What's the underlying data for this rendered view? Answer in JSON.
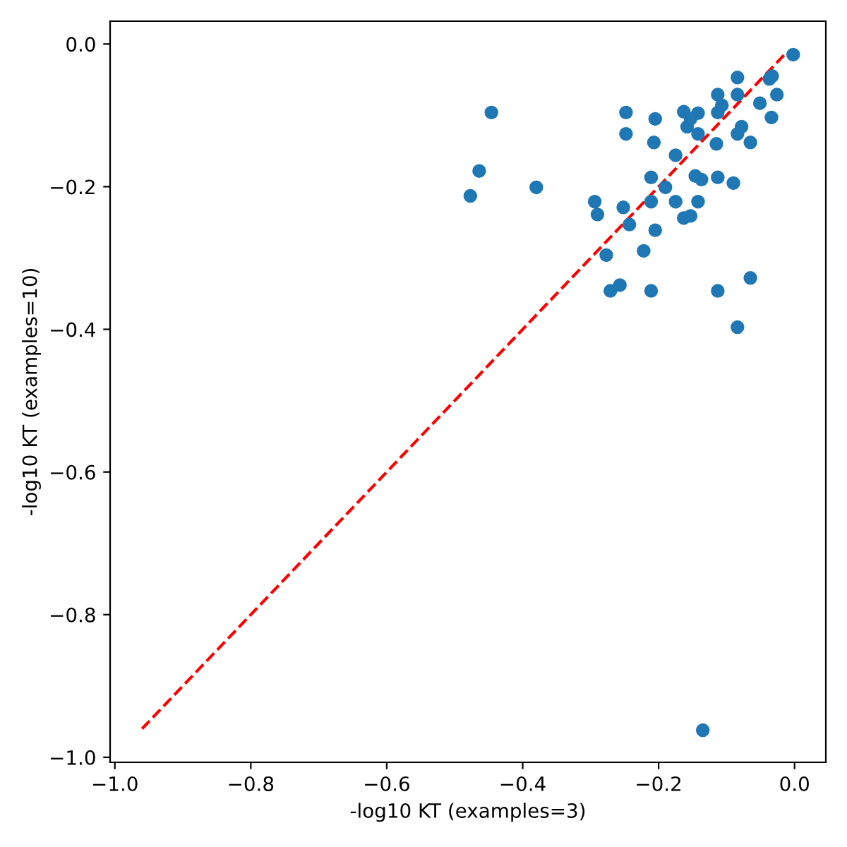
{
  "chart_data": {
    "type": "scatter",
    "xlabel": "-log10 KT (examples=3)",
    "ylabel": "-log10 KT (examples=10)",
    "xlim": [
      -1.007,
      0.046
    ],
    "ylim": [
      -1.007,
      0.032
    ],
    "xticks": [
      {
        "value": -1.0,
        "label": "−1.0"
      },
      {
        "value": -0.8,
        "label": "−0.8"
      },
      {
        "value": -0.6,
        "label": "−0.6"
      },
      {
        "value": -0.4,
        "label": "−0.4"
      },
      {
        "value": -0.2,
        "label": "−0.2"
      },
      {
        "value": 0.0,
        "label": "0.0"
      }
    ],
    "yticks": [
      {
        "value": -1.0,
        "label": "−1.0"
      },
      {
        "value": -0.8,
        "label": "−0.8"
      },
      {
        "value": -0.6,
        "label": "−0.6"
      },
      {
        "value": -0.4,
        "label": "−0.4"
      },
      {
        "value": -0.2,
        "label": "−0.2"
      },
      {
        "value": 0.0,
        "label": "0.0"
      }
    ],
    "grid": false,
    "legend": false,
    "series": [
      {
        "color": "#1f77b4",
        "marker": "circle",
        "x": [
          -0.002,
          -0.084,
          -0.037,
          -0.033,
          -0.113,
          -0.084,
          -0.026,
          -0.446,
          -0.248,
          -0.163,
          -0.142,
          -0.107,
          -0.113,
          -0.051,
          -0.205,
          -0.153,
          -0.034,
          -0.248,
          -0.158,
          -0.142,
          -0.078,
          -0.084,
          -0.207,
          -0.115,
          -0.065,
          -0.175,
          -0.464,
          -0.477,
          -0.38,
          -0.211,
          -0.146,
          -0.137,
          -0.113,
          -0.09,
          -0.19,
          -0.294,
          -0.29,
          -0.252,
          -0.211,
          -0.175,
          -0.142,
          -0.163,
          -0.153,
          -0.243,
          -0.205,
          -0.277,
          -0.222,
          -0.271,
          -0.257,
          -0.211,
          -0.113,
          -0.065,
          -0.084,
          -0.135
        ],
        "values": [
          -0.015,
          -0.047,
          -0.049,
          -0.045,
          -0.071,
          -0.071,
          -0.071,
          -0.096,
          -0.096,
          -0.095,
          -0.097,
          -0.086,
          -0.096,
          -0.083,
          -0.105,
          -0.105,
          -0.103,
          -0.126,
          -0.116,
          -0.126,
          -0.116,
          -0.126,
          -0.138,
          -0.14,
          -0.138,
          -0.156,
          -0.178,
          -0.213,
          -0.201,
          -0.187,
          -0.185,
          -0.19,
          -0.187,
          -0.195,
          -0.201,
          -0.221,
          -0.239,
          -0.229,
          -0.221,
          -0.221,
          -0.221,
          -0.244,
          -0.241,
          -0.253,
          -0.261,
          -0.296,
          -0.29,
          -0.346,
          -0.338,
          -0.346,
          -0.346,
          -0.328,
          -0.397,
          -0.962
        ]
      },
      {
        "type": "line",
        "color": "#ff0000",
        "line_style": "dashed",
        "marker": "none",
        "x": [
          -0.96,
          -0.015
        ],
        "values": [
          -0.96,
          -0.015
        ]
      }
    ]
  }
}
